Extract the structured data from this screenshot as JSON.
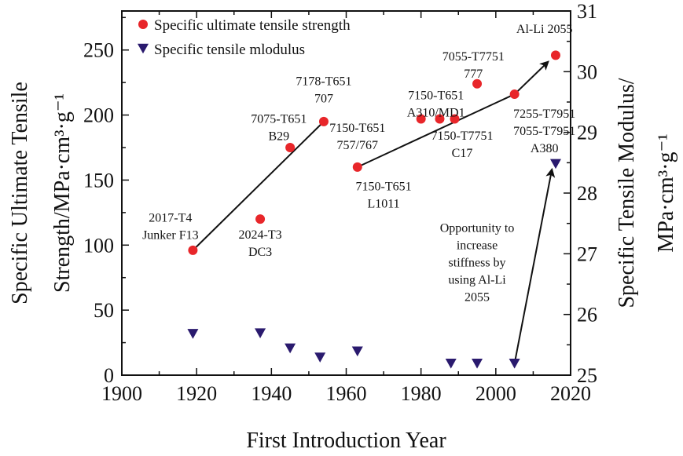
{
  "chart_data": {
    "type": "scatter",
    "xlabel": "First Introduction Year",
    "ylabel_left": [
      "Specific Ultimate Tensile",
      "Strength/MPa·cm³·g⁻¹"
    ],
    "ylabel_right": [
      "Specific Tensile Modulus/",
      "MPa·cm³·g⁻¹"
    ],
    "xlim": [
      1900,
      2020
    ],
    "ylim_left": [
      0,
      280
    ],
    "ylim_right": [
      25,
      31
    ],
    "x_ticks": [
      "1900",
      "1920",
      "1940",
      "1960",
      "1980",
      "2000",
      "2020"
    ],
    "y_left_ticks": [
      "0",
      "50",
      "100",
      "150",
      "200",
      "250"
    ],
    "y_right_ticks": [
      "25",
      "26",
      "27",
      "28",
      "29",
      "30",
      "31"
    ],
    "legend": {
      "position": "top-left",
      "entries": [
        "Specific ultimate tensile strength",
        "Specific tensile mlodulus"
      ]
    },
    "colors": {
      "strength": "#e8262a",
      "modulus": "#2a1a6e",
      "line": "#111111"
    },
    "series": [
      {
        "name": "Specific ultimate tensile strength",
        "axis": "left",
        "points": [
          {
            "x": 1919,
            "y": 96
          },
          {
            "x": 1937,
            "y": 120
          },
          {
            "x": 1945,
            "y": 175
          },
          {
            "x": 1954,
            "y": 195
          },
          {
            "x": 1963,
            "y": 160
          },
          {
            "x": 1980,
            "y": 197
          },
          {
            "x": 1985,
            "y": 197
          },
          {
            "x": 1989,
            "y": 197
          },
          {
            "x": 1995,
            "y": 224
          },
          {
            "x": 2005,
            "y": 216
          },
          {
            "x": 2016,
            "y": 246
          }
        ]
      },
      {
        "name": "Specific tensile mlodulus",
        "axis": "right",
        "points": [
          {
            "x": 1919,
            "y": 25.68
          },
          {
            "x": 1937,
            "y": 25.69
          },
          {
            "x": 1945,
            "y": 25.44
          },
          {
            "x": 1953,
            "y": 25.29
          },
          {
            "x": 1963,
            "y": 25.39
          },
          {
            "x": 1988,
            "y": 25.19
          },
          {
            "x": 1995,
            "y": 25.19
          },
          {
            "x": 2005,
            "y": 25.19
          },
          {
            "x": 2016,
            "y": 28.48
          }
        ]
      }
    ],
    "trend_lines": [
      {
        "axis": "left",
        "from": {
          "x": 1919,
          "y": 96
        },
        "to": {
          "x": 1954,
          "y": 195
        },
        "arrow": false
      },
      {
        "axis": "left",
        "from": {
          "x": 1963,
          "y": 160
        },
        "to": {
          "x": 2005,
          "y": 216
        },
        "arrow": false
      },
      {
        "axis": "left",
        "from": {
          "x": 2005,
          "y": 216
        },
        "to": {
          "x": 2014,
          "y": 241
        },
        "arrow": true
      },
      {
        "axis": "right",
        "from": {
          "x": 2005,
          "y": 25.19
        },
        "to": {
          "x": 2015,
          "y": 28.39
        },
        "arrow": true
      }
    ],
    "annotations": [
      {
        "lines": [
          "2017-T4",
          "Junker F13"
        ],
        "x": 1913,
        "y": 118,
        "axis": "left"
      },
      {
        "lines": [
          "2024-T3",
          "DC3"
        ],
        "x": 1937,
        "y": 105,
        "axis": "left"
      },
      {
        "lines": [
          "7075-T651",
          "B29"
        ],
        "x": 1942,
        "y": 194,
        "axis": "left"
      },
      {
        "lines": [
          "7178-T651",
          "707"
        ],
        "x": 1954,
        "y": 223,
        "axis": "left"
      },
      {
        "lines": [
          "7150-T651",
          "757/767"
        ],
        "x": 1963,
        "y": 187,
        "axis": "left"
      },
      {
        "lines": [
          "7150-T651",
          "L1011"
        ],
        "x": 1970,
        "y": 142,
        "axis": "left"
      },
      {
        "lines": [
          "7150-T651",
          "A310/MD1"
        ],
        "x": 1984,
        "y": 212,
        "axis": "left"
      },
      {
        "lines": [
          "7150-T7751",
          "C17"
        ],
        "x": 1991,
        "y": 181,
        "axis": "left"
      },
      {
        "lines": [
          "7055-T7751",
          "777"
        ],
        "x": 1994,
        "y": 242,
        "axis": "left"
      },
      {
        "lines": [
          "Al-Li 2055"
        ],
        "x": 2013,
        "y": 263,
        "axis": "left"
      },
      {
        "lines": [
          "7255-T7951",
          "7055-T7951",
          "A380"
        ],
        "x": 2013,
        "y": 198,
        "axis": "left"
      },
      {
        "lines": [
          "Opportunity to",
          "increase",
          "stiffness by",
          "using Al-Li",
          "2055"
        ],
        "x": 1995,
        "y": 110,
        "axis": "left"
      }
    ]
  }
}
